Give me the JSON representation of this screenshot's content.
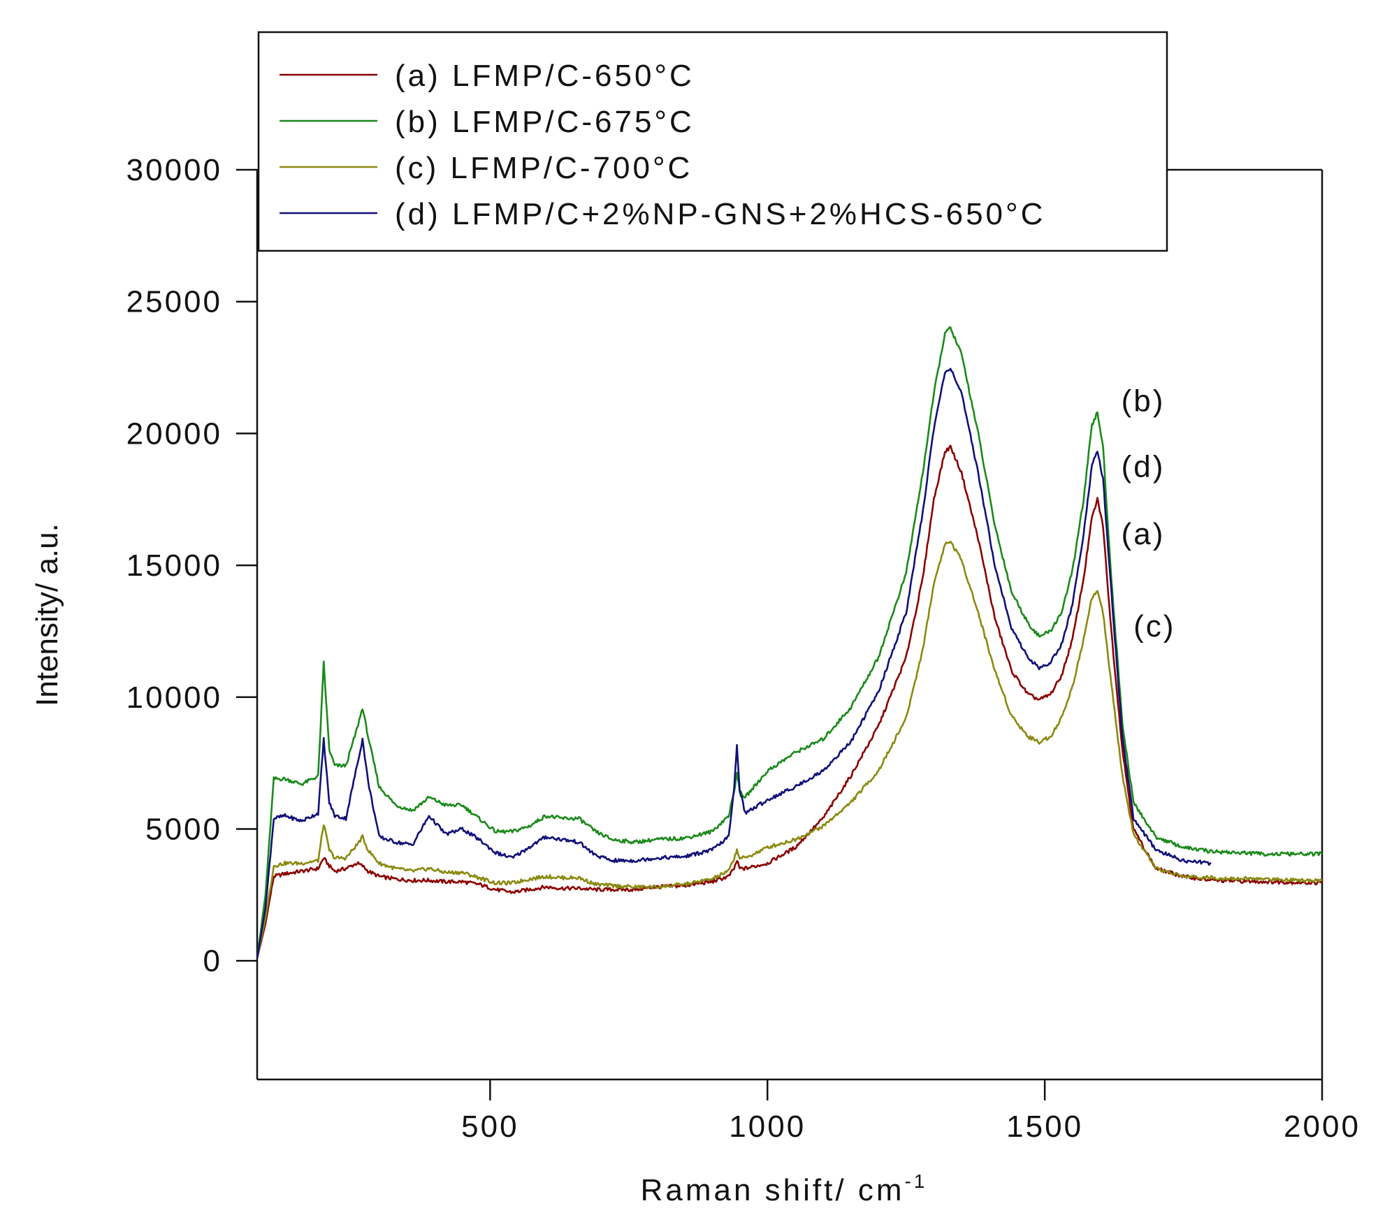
{
  "chart_data": {
    "type": "line",
    "xlabel": "Raman shift/ cm",
    "xlabel_superscript": "-1",
    "ylabel": "Intensity/ a.u.",
    "xlim": [
      80,
      2000
    ],
    "ylim": [
      -4500,
      30000
    ],
    "xticks": [
      500,
      1000,
      1500,
      2000
    ],
    "yticks": [
      0,
      5000,
      10000,
      15000,
      20000,
      25000,
      30000
    ],
    "grid": false,
    "legend_position": "top",
    "series": [
      {
        "name": "(a) LFMP/C-650°C",
        "label": "(a)",
        "color": "#8b0000",
        "x": [
          80,
          95,
          110,
          130,
          160,
          190,
          200,
          210,
          220,
          240,
          260,
          270,
          280,
          300,
          330,
          360,
          390,
          420,
          450,
          480,
          510,
          540,
          570,
          600,
          630,
          660,
          690,
          720,
          760,
          800,
          850,
          900,
          930,
          940,
          945,
          950,
          960,
          1000,
          1050,
          1100,
          1150,
          1200,
          1250,
          1280,
          1300,
          1320,
          1330,
          1350,
          1380,
          1410,
          1440,
          1470,
          1490,
          1510,
          1530,
          1550,
          1570,
          1585,
          1595,
          1605,
          1620,
          1640,
          1660,
          1700,
          1750,
          1800,
          1900,
          2000
        ],
        "y": [
          100,
          1400,
          3200,
          3300,
          3400,
          3500,
          3900,
          3600,
          3400,
          3500,
          3700,
          3600,
          3400,
          3200,
          3100,
          3050,
          3050,
          3000,
          3000,
          2900,
          2700,
          2600,
          2700,
          2800,
          2750,
          2750,
          2700,
          2700,
          2700,
          2800,
          2850,
          3000,
          3200,
          3500,
          3800,
          3500,
          3500,
          3700,
          4300,
          5400,
          7000,
          8900,
          11500,
          14500,
          17500,
          19300,
          19500,
          18500,
          16000,
          13000,
          11000,
          10100,
          9900,
          10100,
          10800,
          12200,
          14500,
          16800,
          17500,
          16500,
          12500,
          8000,
          5000,
          3500,
          3200,
          3050,
          3000,
          2950
        ]
      },
      {
        "name": "(b) LFMP/C-675°C",
        "label": "(b)",
        "color": "#1a8a1a",
        "x": [
          80,
          95,
          110,
          130,
          160,
          190,
          200,
          210,
          220,
          240,
          260,
          270,
          280,
          300,
          330,
          360,
          390,
          420,
          450,
          480,
          510,
          540,
          570,
          600,
          630,
          660,
          690,
          720,
          760,
          800,
          850,
          900,
          930,
          940,
          945,
          950,
          960,
          1000,
          1050,
          1100,
          1150,
          1200,
          1250,
          1280,
          1300,
          1320,
          1330,
          1350,
          1380,
          1410,
          1440,
          1470,
          1490,
          1510,
          1530,
          1550,
          1570,
          1585,
          1595,
          1605,
          1620,
          1640,
          1660,
          1700,
          1750,
          1800,
          1900,
          2000
        ],
        "y": [
          100,
          2500,
          6900,
          6900,
          6700,
          7000,
          11300,
          8000,
          7400,
          7400,
          8800,
          9600,
          8500,
          6600,
          5900,
          5700,
          6200,
          5900,
          5900,
          5400,
          4900,
          4900,
          5100,
          5500,
          5400,
          5400,
          4900,
          4600,
          4500,
          4600,
          4650,
          4900,
          5500,
          6400,
          7200,
          6400,
          6200,
          7200,
          7900,
          8400,
          9600,
          11500,
          14700,
          18500,
          21500,
          23800,
          24000,
          23000,
          20000,
          16500,
          14000,
          12800,
          12300,
          12500,
          13200,
          14800,
          17500,
          20300,
          20800,
          19500,
          14500,
          9000,
          6000,
          4700,
          4300,
          4150,
          4050,
          4050
        ]
      },
      {
        "name": "(c) LFMP/C-700°C",
        "label": "(c)",
        "color": "#8a8a10",
        "x": [
          80,
          95,
          110,
          130,
          160,
          190,
          200,
          210,
          220,
          240,
          260,
          270,
          280,
          300,
          330,
          360,
          390,
          420,
          450,
          480,
          510,
          540,
          570,
          600,
          630,
          660,
          690,
          720,
          760,
          800,
          850,
          900,
          930,
          940,
          945,
          950,
          960,
          1000,
          1050,
          1100,
          1150,
          1200,
          1250,
          1280,
          1300,
          1320,
          1330,
          1350,
          1380,
          1410,
          1440,
          1470,
          1490,
          1510,
          1530,
          1550,
          1570,
          1585,
          1595,
          1605,
          1620,
          1640,
          1660,
          1700,
          1750,
          1800,
          1900,
          2000
        ],
        "y": [
          100,
          1600,
          3600,
          3700,
          3700,
          3800,
          5200,
          4200,
          3900,
          3900,
          4400,
          4700,
          4200,
          3700,
          3500,
          3400,
          3500,
          3350,
          3350,
          3150,
          2950,
          2950,
          3100,
          3200,
          3150,
          3150,
          2900,
          2850,
          2800,
          2800,
          2900,
          3100,
          3400,
          3900,
          4200,
          3900,
          3900,
          4300,
          4600,
          5100,
          6000,
          7200,
          9200,
          11800,
          14300,
          15800,
          15900,
          15200,
          13200,
          11000,
          9300,
          8500,
          8300,
          8500,
          9200,
          10400,
          12200,
          13800,
          14000,
          13200,
          10500,
          7000,
          4800,
          3500,
          3200,
          3150,
          3100,
          3050
        ]
      },
      {
        "name": "(d) LFMP/C+2%NP-GNS+2%HCS-650°C",
        "label": "(d)",
        "color": "#10107a",
        "x": [
          80,
          95,
          110,
          130,
          160,
          190,
          200,
          210,
          220,
          240,
          260,
          270,
          280,
          300,
          330,
          360,
          390,
          420,
          450,
          480,
          510,
          540,
          570,
          600,
          630,
          660,
          690,
          720,
          760,
          800,
          850,
          900,
          930,
          940,
          945,
          950,
          960,
          1000,
          1050,
          1100,
          1150,
          1200,
          1250,
          1280,
          1300,
          1320,
          1330,
          1350,
          1380,
          1410,
          1440,
          1470,
          1490,
          1510,
          1530,
          1550,
          1570,
          1585,
          1595,
          1605,
          1620,
          1640,
          1660,
          1700,
          1750,
          1800
        ],
        "y": [
          100,
          2000,
          5400,
          5500,
          5300,
          5600,
          8400,
          6000,
          5500,
          5400,
          7400,
          8400,
          6800,
          4700,
          4500,
          4400,
          5500,
          4800,
          5000,
          4600,
          4100,
          3900,
          4300,
          4700,
          4600,
          4500,
          4000,
          3800,
          3800,
          3900,
          3950,
          4200,
          4700,
          6500,
          8200,
          6500,
          5600,
          6100,
          6600,
          7200,
          8300,
          10200,
          13200,
          17000,
          20200,
          22300,
          22500,
          21500,
          18500,
          15000,
          12600,
          11500,
          11100,
          11300,
          12000,
          13500,
          16200,
          18800,
          19300,
          18300,
          14000,
          8500,
          5400,
          4200,
          3800,
          3700
        ]
      }
    ]
  }
}
